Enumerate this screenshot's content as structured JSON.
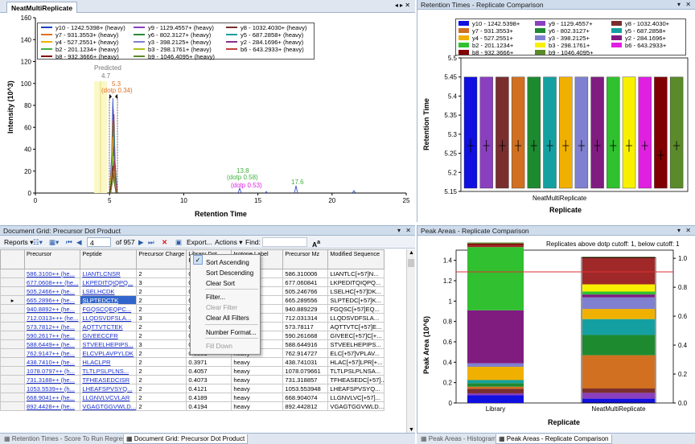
{
  "chromatogram": {
    "tab_label": "NeatMultiReplicate",
    "controls": "◂ ▸ ✕",
    "ylabel": "Intensity (10^3)",
    "xlabel": "Retention Time",
    "yticks": [
      "0",
      "20",
      "40",
      "60",
      "80",
      "100",
      "120",
      "140",
      "160"
    ],
    "xticks": [
      "0",
      "5",
      "10",
      "15",
      "20",
      "25"
    ],
    "annotations": {
      "predicted": "Predicted",
      "predicted_val": "4.7",
      "peak_rt": "5.3",
      "peak_dotp": "(dotp 0.34)",
      "p2_rt": "13.8",
      "p2_dotp1": "(dotp 0.58)",
      "p2_dotp2": "(dotp 0.53)",
      "p3_rt": "17.6"
    },
    "legend": [
      {
        "label": "y10 - 1242.5398+ (heavy)",
        "color": "#1f3fbf"
      },
      {
        "label": "y9 - 1129.4557+ (heavy)",
        "color": "#8a3fbf"
      },
      {
        "label": "y8 - 1032.4030+ (heavy)",
        "color": "#7a2e2e"
      },
      {
        "label": "y7 - 931.3553+ (heavy)",
        "color": "#e07020"
      },
      {
        "label": "y6 - 802.3127+ (heavy)",
        "color": "#2a8a3a"
      },
      {
        "label": "y5 - 687.2858+ (heavy)",
        "color": "#1a9fa0"
      },
      {
        "label": "y4 - 527.2551+ (heavy)",
        "color": "#f0b000"
      },
      {
        "label": "y3 - 398.2125+ (heavy)",
        "color": "#7f7fd0"
      },
      {
        "label": "y2 - 284.1696+ (heavy)",
        "color": "#8a2f8a"
      },
      {
        "label": "b2 - 201.1234+ (heavy)",
        "color": "#40b040"
      },
      {
        "label": "b3 - 298.1761+ (heavy)",
        "color": "#b0c020"
      },
      {
        "label": "b6 - 643.2933+ (heavy)",
        "color": "#c04040"
      },
      {
        "label": "b8 - 932.3666+ (heavy)",
        "color": "#800000"
      },
      {
        "label": "b9 - 1046.4095+ (heavy)",
        "color": "#5a8a2a"
      }
    ]
  },
  "retention": {
    "title": "Retention Times - Replicate Comparison",
    "controls": "▾ ✕",
    "ylabel": "Retention Time",
    "xlabel": "Replicate",
    "category": "NeatMultiReplicate",
    "yticks": [
      "5.15",
      "5.2",
      "5.25",
      "5.3",
      "5.35",
      "5.4",
      "5.45",
      "5.5"
    ],
    "legend": [
      {
        "label": "y10 - 1242.5398+",
        "color": "#1010e0"
      },
      {
        "label": "y9 - 1129.4557+",
        "color": "#8a3fbf"
      },
      {
        "label": "y8 - 1032.4030+",
        "color": "#7a2e2e"
      },
      {
        "label": "y7 - 931.3553+",
        "color": "#d07020"
      },
      {
        "label": "y6 - 802.3127+",
        "color": "#1e8a30"
      },
      {
        "label": "y5 - 687.2858+",
        "color": "#14a0a0"
      },
      {
        "label": "y4 - 527.2551+",
        "color": "#f0b000"
      },
      {
        "label": "y3 - 398.2125+",
        "color": "#8080d0"
      },
      {
        "label": "y2 - 284.1696+",
        "color": "#801c80"
      },
      {
        "label": "b2 - 201.1234+",
        "color": "#30c030"
      },
      {
        "label": "b3 - 298.1761+",
        "color": "#f8f000"
      },
      {
        "label": "b6 - 643.2933+",
        "color": "#e020e0"
      },
      {
        "label": "b8 - 932.3666+",
        "color": "#800000"
      },
      {
        "label": "b9 - 1046.4095+",
        "color": "#5a8a2a"
      }
    ]
  },
  "grid": {
    "title": "Document Grid: Precursor Dot Product",
    "controls": "▾ ✕",
    "toolbar": {
      "reports": "Reports",
      "position": "4",
      "of_total": "of 957",
      "export": "Export...",
      "actions": "Actions",
      "find": "Find:"
    },
    "columns": [
      "Precursor",
      "Peptide",
      "Precursor Charge",
      "Library Dot Product",
      "Isotope Label Type",
      "Precursor Mz",
      "Modified Sequence"
    ],
    "rows": [
      {
        "precursor": "586.3100++ (he...",
        "peptide": "LIANTLCNSR",
        "charge": "2",
        "ldp": "0.3179",
        "iso": "",
        "mz": "586.310006",
        "mod": "LIANTLC[+57]N..."
      },
      {
        "precursor": "677.0608+++ (he...",
        "peptide": "LKPEDITQIQPQ...",
        "charge": "3",
        "ldp": "0.3332",
        "iso": "",
        "mz": "677.060841",
        "mod": "LKPEDITQIQPQ..."
      },
      {
        "precursor": "505.2466++ (he...",
        "peptide": "LSELHCDK",
        "charge": "2",
        "ldp": "0.3341",
        "iso": "",
        "mz": "505.246766",
        "mod": "LSELHC[+57]DK..."
      },
      {
        "precursor": "665.2896++ (he...",
        "peptide": "SLPTEDCTK",
        "charge": "2",
        "ldp": "0.3356",
        "iso": "",
        "mz": "665.289556",
        "mod": "SLPTEDC[+57]K..."
      },
      {
        "precursor": "940.8892++ (he...",
        "peptide": "FGQSCQEQPC...",
        "charge": "2",
        "ldp": "0.3491",
        "iso": "",
        "mz": "940.889229",
        "mod": "FGQSC[+57]EQ..."
      },
      {
        "precursor": "712.0313+++ (he...",
        "peptide": "LLQDSVDFSLA...",
        "charge": "3",
        "ldp": "0.3656",
        "iso": "",
        "mz": "712.031314",
        "mod": "LLQDSVDFSLA..."
      },
      {
        "precursor": "573.7812++ (he...",
        "peptide": "AQTTVTCTEK",
        "charge": "2",
        "ldp": "0.3724",
        "iso": "",
        "mz": "573.78117",
        "mod": "AQTTVTC[+57]E..."
      },
      {
        "precursor": "590.2617++ (he...",
        "peptide": "GIVEECCFR",
        "charge": "2",
        "ldp": "0.3728",
        "iso": "",
        "mz": "590.261668",
        "mod": "GIVEEC[+57]C[+..."
      },
      {
        "precursor": "588.6449++ (he...",
        "peptide": "STVEELHEPIPS...",
        "charge": "3",
        "ldp": "0.3829",
        "iso": "heavy",
        "mz": "588.644916",
        "mod": "STVEELHEPIPS..."
      },
      {
        "precursor": "762.9147++ (he...",
        "peptide": "ELCVPLAVPYLDK",
        "charge": "2",
        "ldp": "0.3881",
        "iso": "heavy",
        "mz": "762.914727",
        "mod": "ELC[+57]VPLAV..."
      },
      {
        "precursor": "438.7410++ (he...",
        "peptide": "HLACLPR",
        "charge": "2",
        "ldp": "0.3971",
        "iso": "heavy",
        "mz": "438.741031",
        "mod": "HLAC[+57]LPR[+..."
      },
      {
        "precursor": "1078.0797++ (h...",
        "peptide": "TLTLPSLPLNS...",
        "charge": "2",
        "ldp": "0.4057",
        "iso": "heavy",
        "mz": "1078.079661",
        "mod": "TLTLPSLPLNSA..."
      },
      {
        "precursor": "731.3188++ (he...",
        "peptide": "TFHEASEDCISR",
        "charge": "2",
        "ldp": "0.4073",
        "iso": "heavy",
        "mz": "731.318857",
        "mod": "TFHEASEDC[+57]..."
      },
      {
        "precursor": "1053.5539++ (h...",
        "peptide": "LHEAFSPVSYQ...",
        "charge": "2",
        "ldp": "0.4121",
        "iso": "heavy",
        "mz": "1053.553948",
        "mod": "LHEAFSPVSYQ..."
      },
      {
        "precursor": "668.9041++ (he...",
        "peptide": "LLGNVLVCVLAR",
        "charge": "2",
        "ldp": "0.4189",
        "iso": "heavy",
        "mz": "668.904074",
        "mod": "LLGNVLVC[+57]..."
      },
      {
        "precursor": "892.4428++ (he...",
        "peptide": "VGAGTGGVWLD...",
        "charge": "2",
        "ldp": "0.4194",
        "iso": "heavy",
        "mz": "892.442812",
        "mod": "VGAGTGGVWLD..."
      }
    ]
  },
  "context_menu": [
    {
      "label": "Sort Ascending",
      "enabled": true,
      "checked": false
    },
    {
      "label": "Sort Descending",
      "enabled": true,
      "checked": false
    },
    {
      "label": "Clear Sort",
      "enabled": true,
      "checked": false
    },
    {
      "label": "Filter...",
      "enabled": true,
      "checked": false
    },
    {
      "label": "Clear Filter",
      "enabled": false,
      "checked": false
    },
    {
      "label": "Clear All Filters",
      "enabled": true,
      "checked": false
    },
    {
      "label": "Number Format...",
      "enabled": true,
      "checked": false
    },
    {
      "label": "Fill Down",
      "enabled": false,
      "checked": false
    }
  ],
  "peak_areas": {
    "title": "Peak Areas - Replicate Comparison",
    "controls": "▾ ✕",
    "note": "Replicates above dotp cutoff: 1, below cutoff: 1",
    "ylabel": "Peak Area (10^6)",
    "xlabel": "Replicate",
    "yticks": [
      "0",
      "0.2",
      "0.4",
      "0.6",
      "0.8",
      "1",
      "1.2",
      "1.4"
    ],
    "right_ticks": [
      "0.0",
      "0.2",
      "0.4",
      "0.6",
      "0.8",
      "1.0"
    ],
    "categories": [
      "Library",
      "NeatMultiReplicate"
    ],
    "stack_order": [
      "y10",
      "y9",
      "y8",
      "y7",
      "y6",
      "y5",
      "y4",
      "y3",
      "y2",
      "b2",
      "b3",
      "b6",
      "b8",
      "b9"
    ],
    "library_values": [
      0.075,
      0.02,
      0.045,
      0.02,
      0.035,
      0.03,
      0.13,
      0.035,
      0.52,
      0.62,
      0.0,
      0.02,
      0.015,
      0.01
    ],
    "neat_fractions": [
      0.03,
      0.04,
      0.03,
      0.23,
      0.14,
      0.11,
      0.07,
      0.08,
      0.02,
      0.02,
      0.05,
      0.18,
      0.006,
      0.004
    ],
    "colors": [
      "#1010e0",
      "#8a3fbf",
      "#7a2e2e",
      "#d07020",
      "#1e8a30",
      "#14a0a0",
      "#f0b000",
      "#8080d0",
      "#801c80",
      "#30c030",
      "#f8f000",
      "#a02828",
      "#800000",
      "#5a8a2a"
    ]
  },
  "bottom_tabs_left": [
    "Retention Times - Score To Run Regression",
    "Document Grid: Precursor Dot Product"
  ],
  "bottom_tabs_right": [
    "Peak Areas - Histogram",
    "Peak Areas - Replicate Comparison"
  ]
}
